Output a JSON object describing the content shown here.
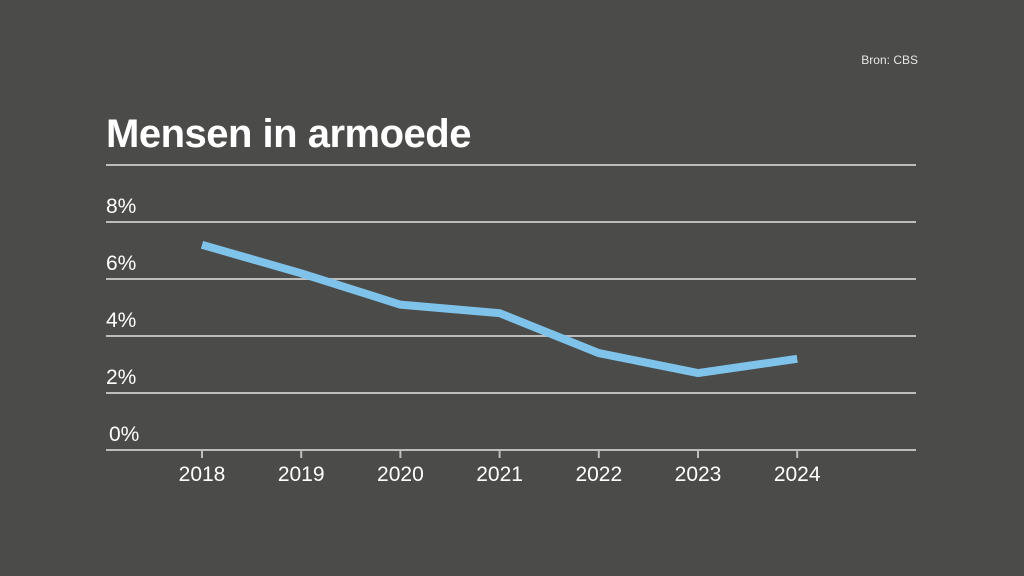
{
  "source": "Bron: CBS",
  "chart_data": {
    "type": "line",
    "title": "Mensen in armoede",
    "xlabel": "",
    "ylabel": "",
    "x": [
      "2018",
      "2019",
      "2020",
      "2021",
      "2022",
      "2023",
      "2024"
    ],
    "series": [
      {
        "name": "Mensen in armoede",
        "values": [
          7.2,
          6.2,
          5.1,
          4.8,
          3.4,
          2.7,
          3.2
        ],
        "color": "#7fc3ea"
      }
    ],
    "ylim": [
      0,
      10
    ],
    "yticks": [
      0,
      2,
      4,
      6,
      8,
      10
    ],
    "ytick_labels": [
      "0%",
      "2%",
      "4%",
      "6%",
      "8%",
      ""
    ],
    "grid": true,
    "legend": "none",
    "colors": {
      "background": "#4b4b4a",
      "grid": "#bdbdbd",
      "text": "#ffffff"
    }
  }
}
